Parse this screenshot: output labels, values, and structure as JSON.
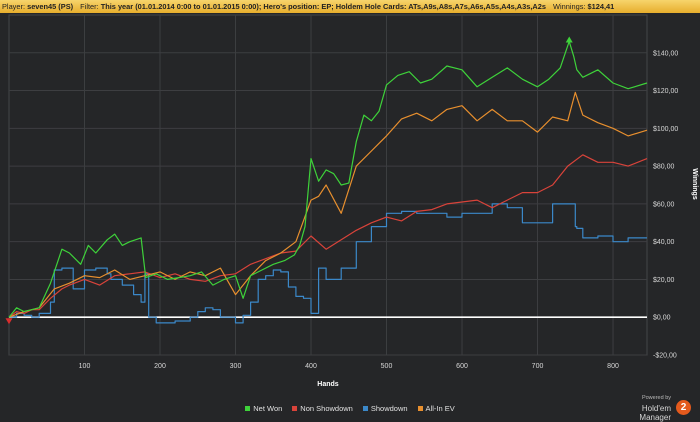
{
  "header": {
    "player_label": "Player:",
    "player_value": "seven45 (PS)",
    "filter_label": "Filter:",
    "filter_value": "This year (01.01.2014 0:00 to 01.01.2015 0:00); Hero's position: EP; Holdem Hole Cards: ATs,A9s,A8s,A7s,A6s,A5s,A4s,A3s,A2s",
    "winnings_label": "Winnings:",
    "winnings_value": "$124,41"
  },
  "colors": {
    "background": "#252628",
    "header": "#efc14d",
    "net_won": "#3ed23a",
    "non_showdown": "#d9433a",
    "showdown": "#3b88c9",
    "all_in_ev": "#e88f2e",
    "zero_line": "#ffffff",
    "grid": "#3d3e41"
  },
  "chart_data": {
    "type": "line",
    "xlabel": "Hands",
    "ylabel": "Winnings",
    "xlim": [
      0,
      845
    ],
    "ylim": [
      -20,
      160
    ],
    "xticks": [
      100,
      200,
      300,
      400,
      500,
      600,
      700,
      800
    ],
    "yticks": [
      -20,
      0,
      20,
      40,
      60,
      80,
      100,
      120,
      140
    ],
    "ytick_labels": [
      "-$20,00",
      "$0,00",
      "$20,00",
      "$40,00",
      "$60,00",
      "$80,00",
      "$100,00",
      "$120,00",
      "$140,00"
    ],
    "legend_position": "bottom",
    "grid": true,
    "series": [
      {
        "name": "Net Won",
        "color": "#3ed23a",
        "x": [
          0,
          10,
          20,
          30,
          40,
          55,
          70,
          80,
          95,
          105,
          115,
          130,
          140,
          150,
          160,
          175,
          181,
          195,
          210,
          225,
          240,
          255,
          270,
          285,
          300,
          310,
          320,
          335,
          350,
          365,
          378,
          385,
          392,
          400,
          410,
          420,
          430,
          440,
          450,
          460,
          470,
          480,
          490,
          500,
          515,
          530,
          545,
          560,
          580,
          600,
          620,
          640,
          660,
          680,
          700,
          715,
          730,
          742,
          748,
          752,
          760,
          780,
          800,
          820,
          845
        ],
        "y": [
          0,
          5,
          3,
          4,
          5,
          18,
          36,
          34,
          28,
          38,
          34,
          41,
          44,
          38,
          40,
          42,
          21,
          23,
          20,
          21,
          22,
          24,
          17,
          20,
          22,
          10,
          22,
          25,
          28,
          30,
          33,
          38,
          48,
          84,
          72,
          78,
          76,
          70,
          71,
          93,
          107,
          104,
          109,
          123,
          128,
          130,
          124,
          126,
          133,
          131,
          122,
          127,
          132,
          126,
          122,
          126,
          132,
          146,
          138,
          131,
          127,
          131,
          124,
          121,
          124
        ]
      },
      {
        "name": "Non Showdown",
        "color": "#d9433a",
        "x": [
          0,
          10,
          20,
          30,
          40,
          55,
          70,
          80,
          100,
          120,
          140,
          160,
          180,
          200,
          220,
          240,
          260,
          280,
          300,
          320,
          340,
          360,
          380,
          400,
          420,
          440,
          460,
          480,
          500,
          520,
          540,
          560,
          580,
          600,
          620,
          640,
          660,
          680,
          700,
          720,
          740,
          760,
          780,
          800,
          820,
          845
        ],
        "y": [
          0,
          3,
          2,
          4,
          4,
          10,
          15,
          17,
          20,
          17,
          22,
          23,
          24,
          21,
          23,
          20,
          19,
          22,
          23,
          28,
          31,
          34,
          35,
          43,
          36,
          41,
          46,
          50,
          53,
          51,
          56,
          57,
          60,
          61,
          62,
          58,
          62,
          66,
          66,
          70,
          80,
          86,
          82,
          82,
          80,
          84
        ]
      },
      {
        "name": "Showdown",
        "color": "#3b88c9",
        "x": [
          0,
          10,
          20,
          30,
          40,
          55,
          60,
          70,
          85,
          100,
          115,
          130,
          135,
          150,
          165,
          175,
          180,
          185,
          195,
          220,
          240,
          250,
          260,
          270,
          280,
          290,
          300,
          310,
          320,
          330,
          340,
          350,
          360,
          370,
          380,
          390,
          400,
          410,
          420,
          440,
          460,
          480,
          500,
          520,
          540,
          560,
          580,
          600,
          620,
          640,
          660,
          680,
          700,
          720,
          740,
          750,
          752,
          760,
          780,
          800,
          820,
          845
        ],
        "y": [
          0,
          2,
          1,
          0,
          2,
          8,
          25,
          26,
          15,
          25,
          26,
          23,
          20,
          17,
          12,
          8,
          23,
          0,
          -3,
          -2,
          0,
          3,
          5,
          4,
          0,
          0,
          -3,
          1,
          8,
          20,
          22,
          25,
          24,
          16,
          11,
          10,
          2,
          26,
          20,
          26,
          40,
          48,
          55,
          56,
          55,
          55,
          53,
          55,
          55,
          60,
          58,
          50,
          50,
          60,
          60,
          48,
          47,
          42,
          43,
          40,
          42,
          42
        ]
      },
      {
        "name": "All-In EV",
        "color": "#e88f2e",
        "x": [
          0,
          20,
          40,
          60,
          80,
          100,
          120,
          140,
          160,
          180,
          200,
          220,
          240,
          260,
          280,
          300,
          320,
          340,
          360,
          380,
          400,
          410,
          420,
          440,
          460,
          480,
          500,
          520,
          540,
          560,
          580,
          600,
          620,
          640,
          660,
          680,
          700,
          720,
          740,
          750,
          760,
          780,
          800,
          820,
          845
        ],
        "y": [
          0,
          3,
          5,
          15,
          18,
          22,
          21,
          25,
          20,
          22,
          24,
          20,
          24,
          22,
          26,
          12,
          22,
          30,
          34,
          40,
          62,
          64,
          70,
          55,
          80,
          88,
          96,
          105,
          108,
          104,
          110,
          112,
          104,
          110,
          104,
          104,
          98,
          106,
          104,
          119,
          107,
          103,
          100,
          96,
          99
        ]
      }
    ]
  }
}
